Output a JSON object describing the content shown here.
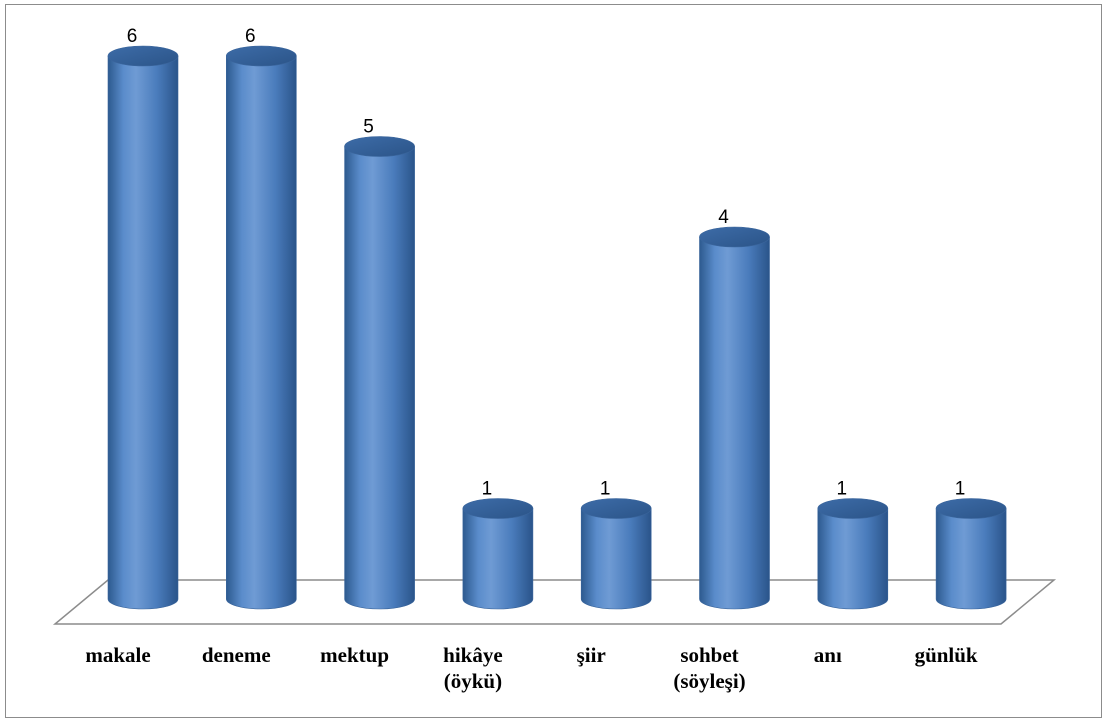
{
  "chart_data": {
    "type": "bar",
    "style": "3d-cylinder",
    "categories": [
      "makale",
      "deneme",
      "mektup",
      "hikâye (öykü)",
      "şiir",
      "sohbet (söyleşi)",
      "anı",
      "günlük"
    ],
    "category_lines": [
      [
        "makale"
      ],
      [
        "deneme"
      ],
      [
        "mektup"
      ],
      [
        "hikâye",
        "(öykü)"
      ],
      [
        "şiir"
      ],
      [
        "sohbet",
        "(söyleşi)"
      ],
      [
        "anı"
      ],
      [
        "günlük"
      ]
    ],
    "values": [
      6,
      6,
      5,
      1,
      1,
      4,
      1,
      1
    ],
    "data_labels": [
      "6",
      "6",
      "5",
      "1",
      "1",
      "4",
      "1",
      "1"
    ],
    "title": "",
    "xlabel": "",
    "ylabel": "",
    "ylim": [
      0,
      6
    ],
    "grid": false,
    "legend": "none",
    "colors": {
      "bar_fill": "#4f81bd",
      "bar_dark": "#2e5a8e",
      "bar_light": "#8fb1de",
      "floor_stroke": "#8c8c8c"
    }
  }
}
